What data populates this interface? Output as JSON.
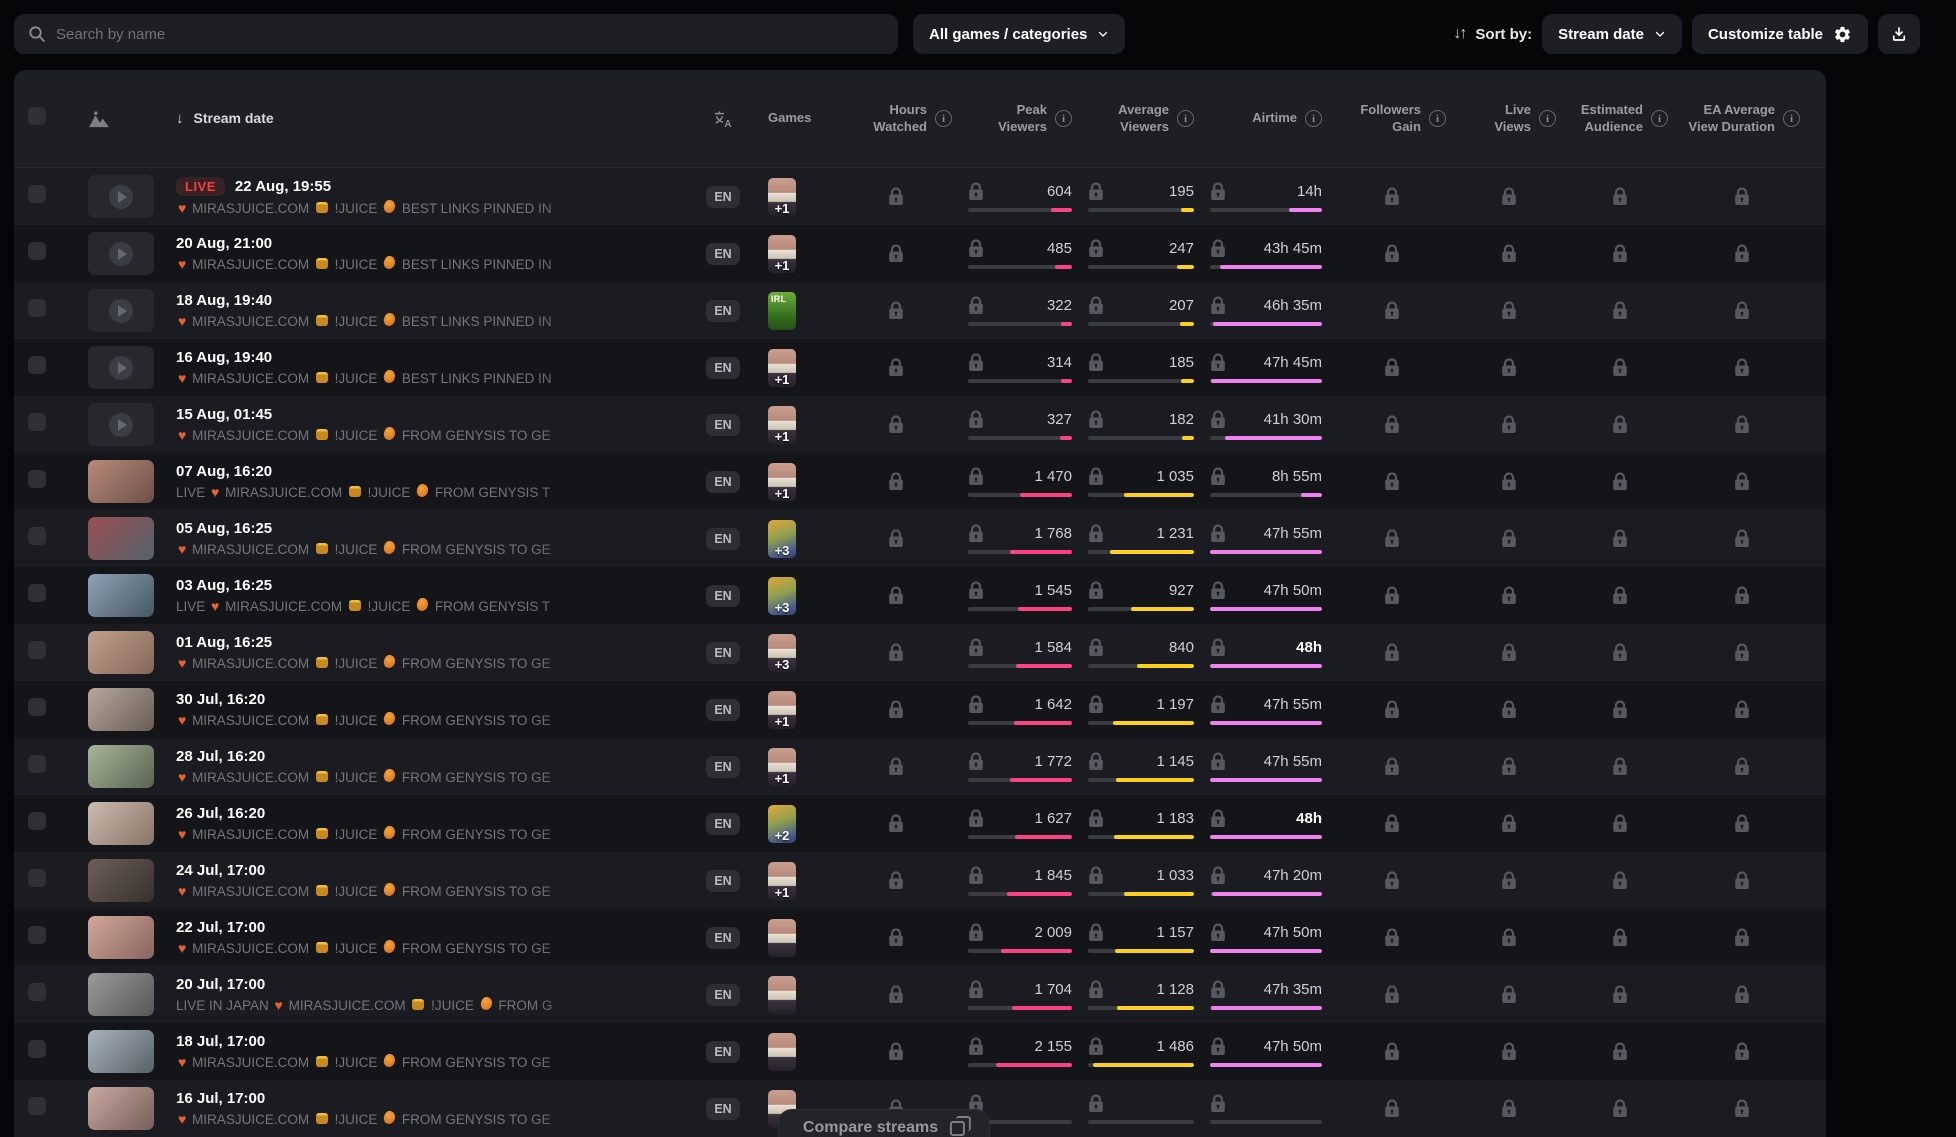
{
  "toolbar": {
    "search_placeholder": "Search by name",
    "games_filter_label": "All games / categories",
    "sort_icon": "↓↑",
    "sort_by_label": "Sort by:",
    "sort_value": "Stream date",
    "customize_label": "Customize table"
  },
  "header": {
    "stream_date": "Stream date",
    "sort_arrow": "↓",
    "games": "Games",
    "hours_watched": [
      "Hours",
      "Watched"
    ],
    "peak_viewers": [
      "Peak",
      "Viewers"
    ],
    "average_viewers": [
      "Average",
      "Viewers"
    ],
    "airtime": [
      "Airtime",
      ""
    ],
    "followers_gain": [
      "Followers",
      "Gain"
    ],
    "live_views": [
      "Live",
      "Views"
    ],
    "estimated_audience": [
      "Estimated",
      "Audience"
    ],
    "ea_avg_view_duration": [
      "EA Average",
      "View Duration"
    ]
  },
  "colors": {
    "peak_bar": "#fb4381",
    "avg_bar": "#fcd01b",
    "airtime_bar": "#ef82ef",
    "live": "#f4443e"
  },
  "maxima": {
    "peak": 2950,
    "avg": 1560,
    "airtime_minutes": 2880
  },
  "compare_label": "Compare streams",
  "live_badge_label": "LIVE",
  "rows": [
    {
      "date": "22 Aug, 19:55",
      "live": true,
      "title": "❤ MIRASJUICE.COM 🍯 !JUICE 🥭 BEST LINKS PINNED IN",
      "lang": "EN",
      "game": {
        "art": "chat",
        "badge": "+1"
      },
      "thumb": {
        "kind": "placeholder"
      },
      "peak": {
        "t": "604",
        "v": 604
      },
      "avg": {
        "t": "195",
        "v": 195
      },
      "air": {
        "t": "14h",
        "m": 840,
        "bold": false
      }
    },
    {
      "date": "20 Aug, 21:00",
      "live": false,
      "title": "❤ MIRASJUICE.COM 🍯 !JUICE 🥭 BEST LINKS PINNED IN",
      "lang": "EN",
      "game": {
        "art": "chat",
        "badge": "+1"
      },
      "thumb": {
        "kind": "placeholder"
      },
      "peak": {
        "t": "485",
        "v": 485
      },
      "avg": {
        "t": "247",
        "v": 247
      },
      "air": {
        "t": "43h 45m",
        "m": 2625,
        "bold": false
      }
    },
    {
      "date": "18 Aug, 19:40",
      "live": false,
      "title": "❤ MIRASJUICE.COM 🍯 !JUICE 🥭 BEST LINKS PINNED IN",
      "lang": "EN",
      "game": {
        "art": "irl",
        "badge": null
      },
      "thumb": {
        "kind": "placeholder"
      },
      "peak": {
        "t": "322",
        "v": 322
      },
      "avg": {
        "t": "207",
        "v": 207
      },
      "air": {
        "t": "46h 35m",
        "m": 2795,
        "bold": false
      }
    },
    {
      "date": "16 Aug, 19:40",
      "live": false,
      "title": "❤ MIRASJUICE.COM 🍯 !JUICE 🥭 BEST LINKS PINNED IN",
      "lang": "EN",
      "game": {
        "art": "chat",
        "badge": "+1"
      },
      "thumb": {
        "kind": "placeholder"
      },
      "peak": {
        "t": "314",
        "v": 314
      },
      "avg": {
        "t": "185",
        "v": 185
      },
      "air": {
        "t": "47h 45m",
        "m": 2865,
        "bold": false
      }
    },
    {
      "date": "15 Aug, 01:45",
      "live": false,
      "title": "❤ MIRASJUICE.COM 🍯 !JUICE 🥭 FROM GENYSIS TO GE",
      "lang": "EN",
      "game": {
        "art": "chat",
        "badge": "+1"
      },
      "thumb": {
        "kind": "placeholder"
      },
      "peak": {
        "t": "327",
        "v": 327
      },
      "avg": {
        "t": "182",
        "v": 182
      },
      "air": {
        "t": "41h 30m",
        "m": 2490,
        "bold": false
      }
    },
    {
      "date": "07 Aug, 16:20",
      "live": false,
      "title": "LIVE ❤ MIRASJUICE.COM 🍯 !JUICE 🥭 FROM GENYSIS T",
      "lang": "EN",
      "game": {
        "art": "chat",
        "badge": "+1"
      },
      "thumb": {
        "kind": "photo",
        "c1": "#b98a7a",
        "c2": "#6d5049"
      },
      "peak": {
        "t": "1 470",
        "v": 1470
      },
      "avg": {
        "t": "1 035",
        "v": 1035
      },
      "air": {
        "t": "8h 55m",
        "m": 535,
        "bold": false
      }
    },
    {
      "date": "05 Aug, 16:25",
      "live": false,
      "title": "❤ MIRASJUICE.COM 🍯 !JUICE 🥭 FROM GENYSIS TO GE",
      "lang": "EN",
      "game": {
        "art": "cover",
        "badge": "+3"
      },
      "thumb": {
        "kind": "photo",
        "c1": "#9a4f4f",
        "c2": "#55626e"
      },
      "peak": {
        "t": "1 768",
        "v": 1768
      },
      "avg": {
        "t": "1 231",
        "v": 1231
      },
      "air": {
        "t": "47h 55m",
        "m": 2875,
        "bold": false
      }
    },
    {
      "date": "03 Aug, 16:25",
      "live": false,
      "title": "LIVE ❤ MIRASJUICE.COM 🍯 !JUICE 🥭 FROM GENYSIS T",
      "lang": "EN",
      "game": {
        "art": "cover",
        "badge": "+3"
      },
      "thumb": {
        "kind": "photo",
        "c1": "#8fa3b5",
        "c2": "#465663"
      },
      "peak": {
        "t": "1 545",
        "v": 1545
      },
      "avg": {
        "t": "927",
        "v": 927
      },
      "air": {
        "t": "47h 50m",
        "m": 2870,
        "bold": false
      }
    },
    {
      "date": "01 Aug, 16:25",
      "live": false,
      "title": "❤ MIRASJUICE.COM 🍯 !JUICE 🥭 FROM GENYSIS TO GE",
      "lang": "EN",
      "game": {
        "art": "chat",
        "badge": "+3"
      },
      "thumb": {
        "kind": "photo",
        "c1": "#c2a18b",
        "c2": "#82675a"
      },
      "peak": {
        "t": "1 584",
        "v": 1584
      },
      "avg": {
        "t": "840",
        "v": 840
      },
      "air": {
        "t": "48h",
        "m": 2880,
        "bold": true
      }
    },
    {
      "date": "30 Jul, 16:20",
      "live": false,
      "title": "❤ MIRASJUICE.COM 🍯 !JUICE 🥭 FROM GENYSIS TO GE",
      "lang": "EN",
      "game": {
        "art": "chat",
        "badge": "+1"
      },
      "thumb": {
        "kind": "photo",
        "c1": "#b8a79b",
        "c2": "#695d55"
      },
      "peak": {
        "t": "1 642",
        "v": 1642
      },
      "avg": {
        "t": "1 197",
        "v": 1197
      },
      "air": {
        "t": "47h 55m",
        "m": 2875,
        "bold": false
      }
    },
    {
      "date": "28 Jul, 16:20",
      "live": false,
      "title": "❤ MIRASJUICE.COM 🍯 !JUICE 🥭 FROM GENYSIS TO GE",
      "lang": "EN",
      "game": {
        "art": "chat",
        "badge": "+1"
      },
      "thumb": {
        "kind": "photo",
        "c1": "#a8b59a",
        "c2": "#596351"
      },
      "peak": {
        "t": "1 772",
        "v": 1772
      },
      "avg": {
        "t": "1 145",
        "v": 1145
      },
      "air": {
        "t": "47h 55m",
        "m": 2875,
        "bold": false
      }
    },
    {
      "date": "26 Jul, 16:20",
      "live": false,
      "title": "❤ MIRASJUICE.COM 🍯 !JUICE 🥭 FROM GENYSIS TO GE",
      "lang": "EN",
      "game": {
        "art": "cover",
        "badge": "+2"
      },
      "thumb": {
        "kind": "photo",
        "c1": "#cdbcae",
        "c2": "#857467"
      },
      "peak": {
        "t": "1 627",
        "v": 1627
      },
      "avg": {
        "t": "1 183",
        "v": 1183
      },
      "air": {
        "t": "48h",
        "m": 2880,
        "bold": true
      }
    },
    {
      "date": "24 Jul, 17:00",
      "live": false,
      "title": "❤ MIRASJUICE.COM 🍯 !JUICE 🥭 FROM GENYSIS TO GE",
      "lang": "EN",
      "game": {
        "art": "chat",
        "badge": "+1"
      },
      "thumb": {
        "kind": "photo",
        "c1": "#6e5f58",
        "c2": "#37302c"
      },
      "peak": {
        "t": "1 845",
        "v": 1845
      },
      "avg": {
        "t": "1 033",
        "v": 1033
      },
      "air": {
        "t": "47h 20m",
        "m": 2840,
        "bold": false
      }
    },
    {
      "date": "22 Jul, 17:00",
      "live": false,
      "title": "❤ MIRASJUICE.COM 🍯 !JUICE 🥭 FROM GENYSIS TO GE",
      "lang": "EN",
      "game": {
        "art": "chat",
        "badge": null
      },
      "thumb": {
        "kind": "photo",
        "c1": "#d3a79b",
        "c2": "#87655d"
      },
      "peak": {
        "t": "2 009",
        "v": 2009
      },
      "avg": {
        "t": "1 157",
        "v": 1157
      },
      "air": {
        "t": "47h 50m",
        "m": 2870,
        "bold": false
      }
    },
    {
      "date": "20 Jul, 17:00",
      "live": false,
      "title": "LIVE IN JAPAN ❤ MIRASJUICE.COM 🍯 !JUICE 🥭 FROM G",
      "lang": "EN",
      "game": {
        "art": "chat",
        "badge": null
      },
      "thumb": {
        "kind": "photo",
        "c1": "#9b9b9b",
        "c2": "#565656"
      },
      "peak": {
        "t": "1 704",
        "v": 1704
      },
      "avg": {
        "t": "1 128",
        "v": 1128
      },
      "air": {
        "t": "47h 35m",
        "m": 2855,
        "bold": false
      }
    },
    {
      "date": "18 Jul, 17:00",
      "live": false,
      "title": "❤ MIRASJUICE.COM 🍯 !JUICE 🥭 FROM GENYSIS TO GE",
      "lang": "EN",
      "game": {
        "art": "chat",
        "badge": null
      },
      "thumb": {
        "kind": "photo",
        "c1": "#aab4bd",
        "c2": "#586168"
      },
      "peak": {
        "t": "2 155",
        "v": 2155
      },
      "avg": {
        "t": "1 486",
        "v": 1486
      },
      "air": {
        "t": "47h 50m",
        "m": 2870,
        "bold": false
      }
    },
    {
      "date": "16 Jul, 17:00",
      "live": false,
      "title": "❤ MIRASJUICE.COM 🍯 !JUICE 🥭 FROM GENYSIS TO GE",
      "lang": "EN",
      "game": {
        "art": "chat",
        "badge": null
      },
      "thumb": {
        "kind": "photo",
        "c1": "#c9a9a0",
        "c2": "#75605a"
      },
      "peak": {
        "t": "",
        "v": 0
      },
      "avg": {
        "t": "",
        "v": 0
      },
      "air": {
        "t": "",
        "m": 0,
        "bold": false
      }
    }
  ]
}
